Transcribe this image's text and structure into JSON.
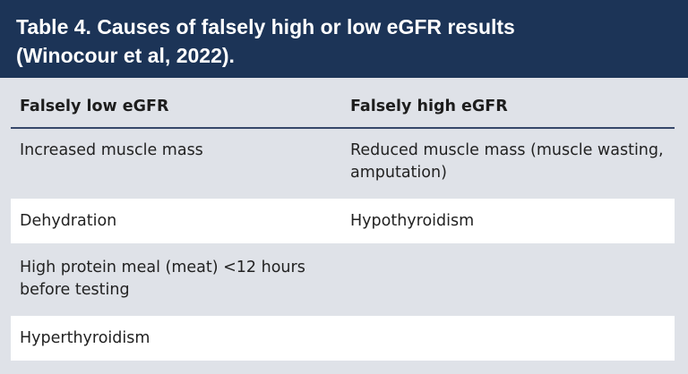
{
  "title": {
    "line1": "Table 4. Causes of falsely high or low eGFR results",
    "line2": "(Winocour et al, 2022)."
  },
  "table": {
    "headers": [
      "Falsely low eGFR",
      "Falsely high eGFR"
    ],
    "rows": [
      {
        "low": "Increased muscle mass",
        "high": "Reduced muscle mass (muscle wasting, amputation)"
      },
      {
        "low": "Dehydration",
        "high": "Hypothyroidism"
      },
      {
        "low": "High protein meal (meat) <12 hours before testing",
        "high": ""
      },
      {
        "low": "Hyperthyroidism",
        "high": ""
      }
    ]
  },
  "colors": {
    "title_bg": "#1c3457",
    "page_bg": "#dfe2e8",
    "row_alt_bg": "#ffffff",
    "rule": "#36476a"
  }
}
